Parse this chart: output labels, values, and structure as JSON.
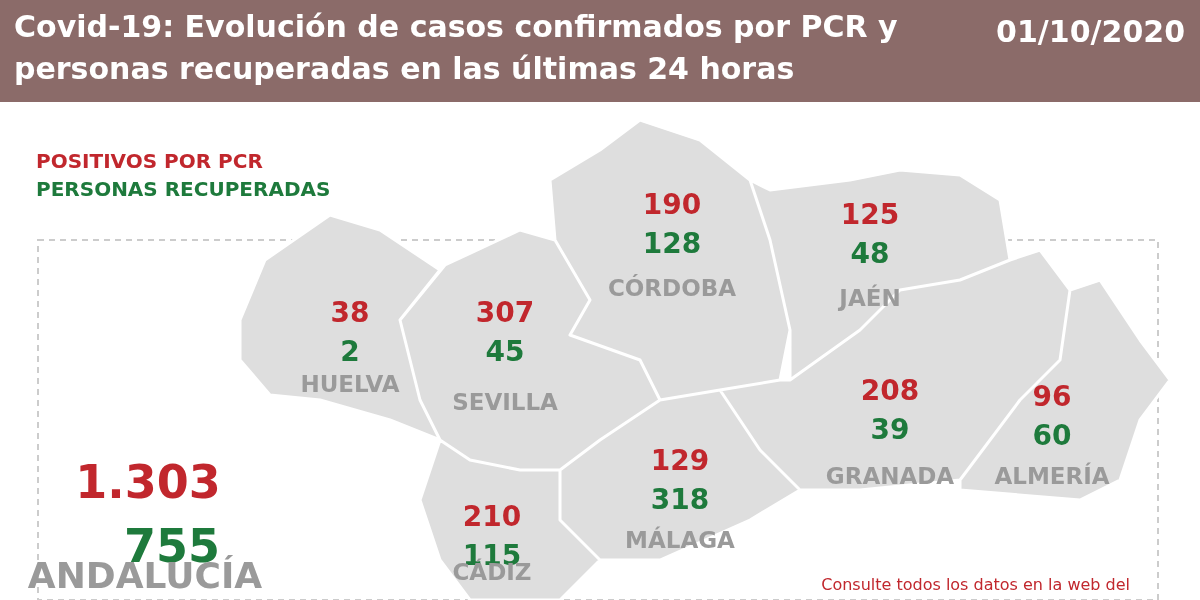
{
  "chart_data": {
    "type": "other",
    "title": "Covid-19: Evolución de casos confirmados por PCR y personas recuperadas en las últimas 24 horas",
    "subtitle": "01/10/2020",
    "categories": [
      "HUELVA",
      "SEVILLA",
      "CÓRDOBA",
      "JAÉN",
      "CÁDIZ",
      "MÁLAGA",
      "GRANADA",
      "ALMERÍA"
    ],
    "series": [
      {
        "name": "POSITIVOS POR PCR",
        "color": "#c1272d",
        "values": [
          38,
          307,
          190,
          125,
          210,
          129,
          208,
          96
        ]
      },
      {
        "name": "PERSONAS RECUPERADAS",
        "color": "#1e7a3c",
        "values": [
          2,
          45,
          128,
          48,
          115,
          318,
          39,
          60
        ]
      }
    ],
    "data_labels": true,
    "annotations": [
      "1.303",
      "755",
      "ANDALUCÍA",
      "Consulte todos los datos en la web del"
    ]
  }
}
